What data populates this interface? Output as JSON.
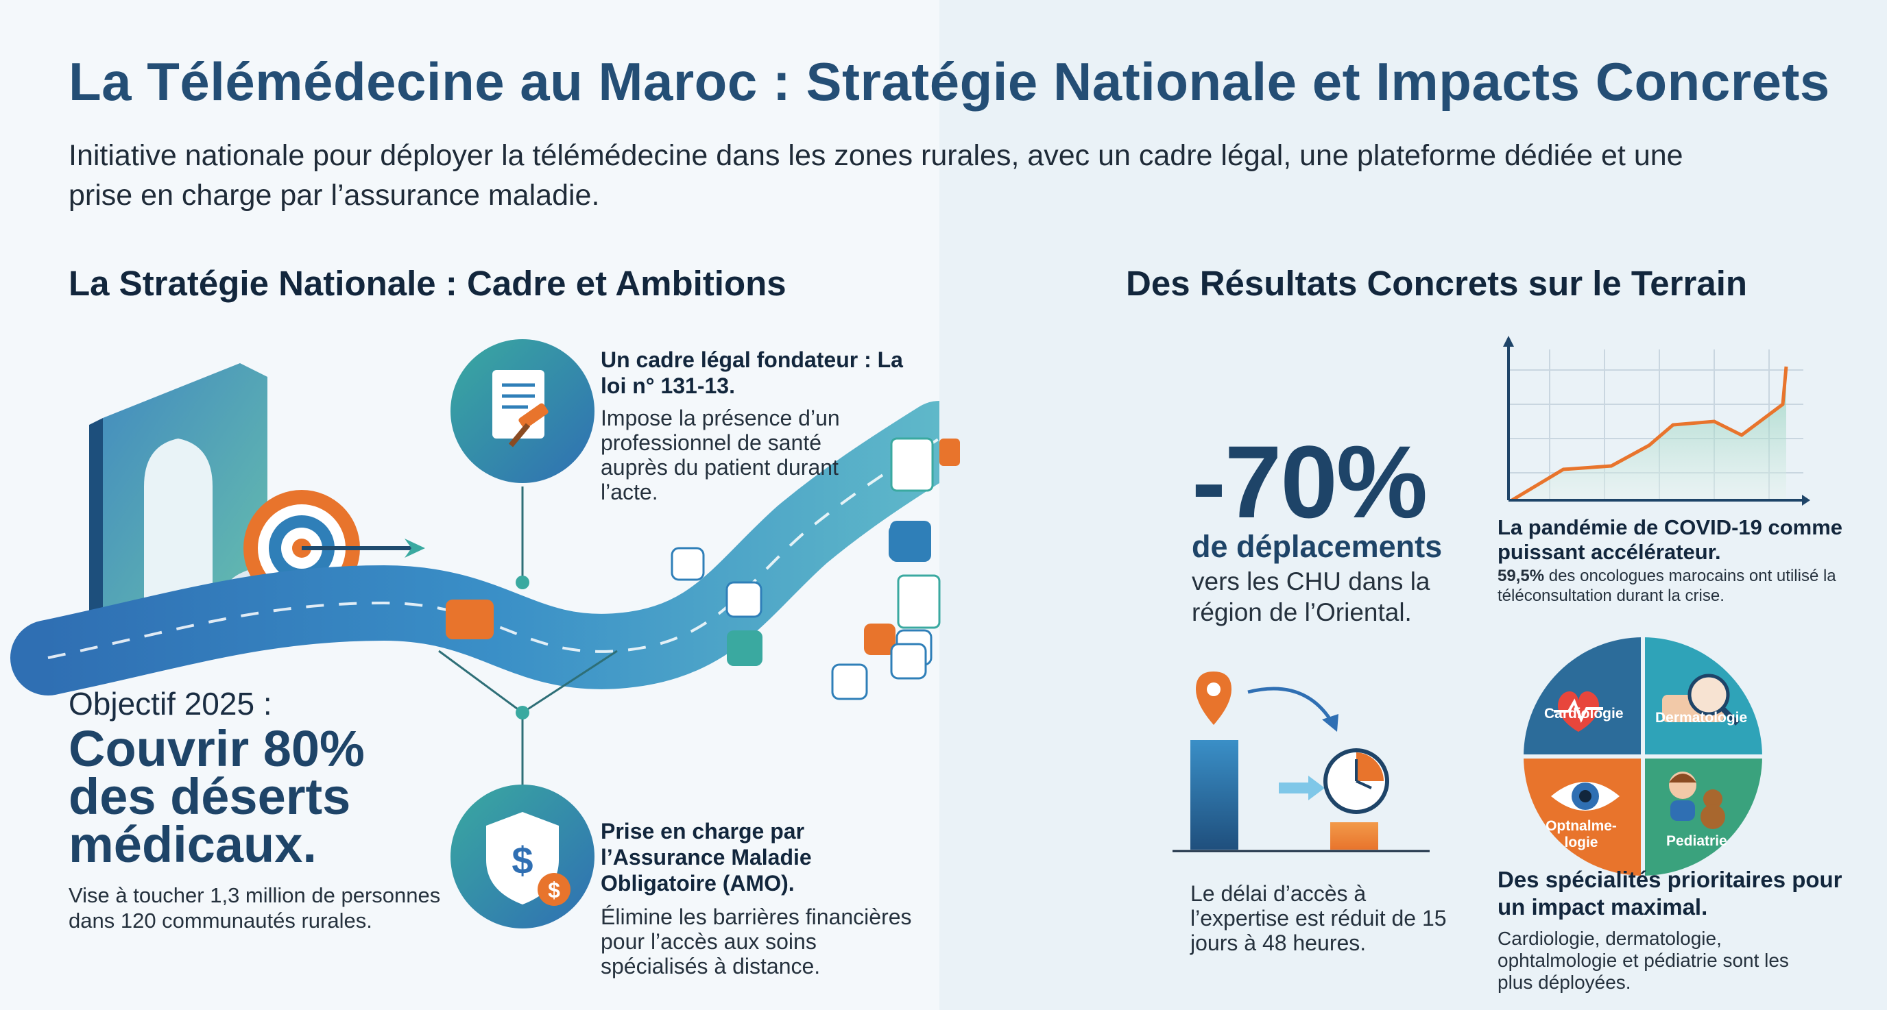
{
  "header": {
    "title": "La Télémédecine au Maroc : Stratégie Nationale et Impacts Concrets",
    "subtitle": "Initiative nationale pour déployer la télémédecine dans les zones rurales, avec un cadre légal, une plateforme dédiée et une prise en charge par l’assurance maladie."
  },
  "left_section": {
    "title": "La Stratégie Nationale : Cadre et Ambitions",
    "legal": {
      "title": "Un cadre légal fondateur : La loi n° 131-13.",
      "text": "Impose la présence d’un professionnel de santé auprès du patient durant l’acte.",
      "icon": "gavel-document-icon"
    },
    "amo": {
      "title": "Prise en charge par l’Assurance Maladie Obligatoire (AMO).",
      "text": "Élimine les barrières financières pour l’accès aux soins spécialisés à distance.",
      "icon": "shield-dollar-icon"
    },
    "objective": {
      "label": "Objectif 2025 :",
      "main": "Couvrir 80% des déserts médicaux.",
      "text": "Vise à toucher 1,3 million de personnes dans 120 communautés rurales."
    }
  },
  "right_section": {
    "title": "Des Résultats Concrets sur le Terrain",
    "stat": {
      "value": "-70%",
      "label": "de déplacements",
      "text": "vers les CHU dans la région de l’Oriental."
    },
    "delay": {
      "text": "Le délai d’accès à l’expertise est réduit de 15 jours à 48 heures."
    },
    "covid": {
      "title": "La pandémie de COVID-19 comme puissant accélérateur.",
      "highlight": "59,5%",
      "text": " des oncologues marocains ont utilisé la téléconsultation durant la crise."
    },
    "specialties": {
      "title": "Des spécialités prioritaires pour un impact maximal.",
      "text": "Cardiologie, dermatologie, ophtalmologie et pédiatrie sont les plus déployées.",
      "items": [
        "Cardiologie",
        "Dermatologie",
        "Optnalme-logie",
        "Pediatrie"
      ]
    }
  },
  "colors": {
    "title": "#244e75",
    "navy": "#1e4468",
    "teal": "#2a9d8f",
    "blue": "#2b6cb0",
    "orange": "#e8742c"
  }
}
